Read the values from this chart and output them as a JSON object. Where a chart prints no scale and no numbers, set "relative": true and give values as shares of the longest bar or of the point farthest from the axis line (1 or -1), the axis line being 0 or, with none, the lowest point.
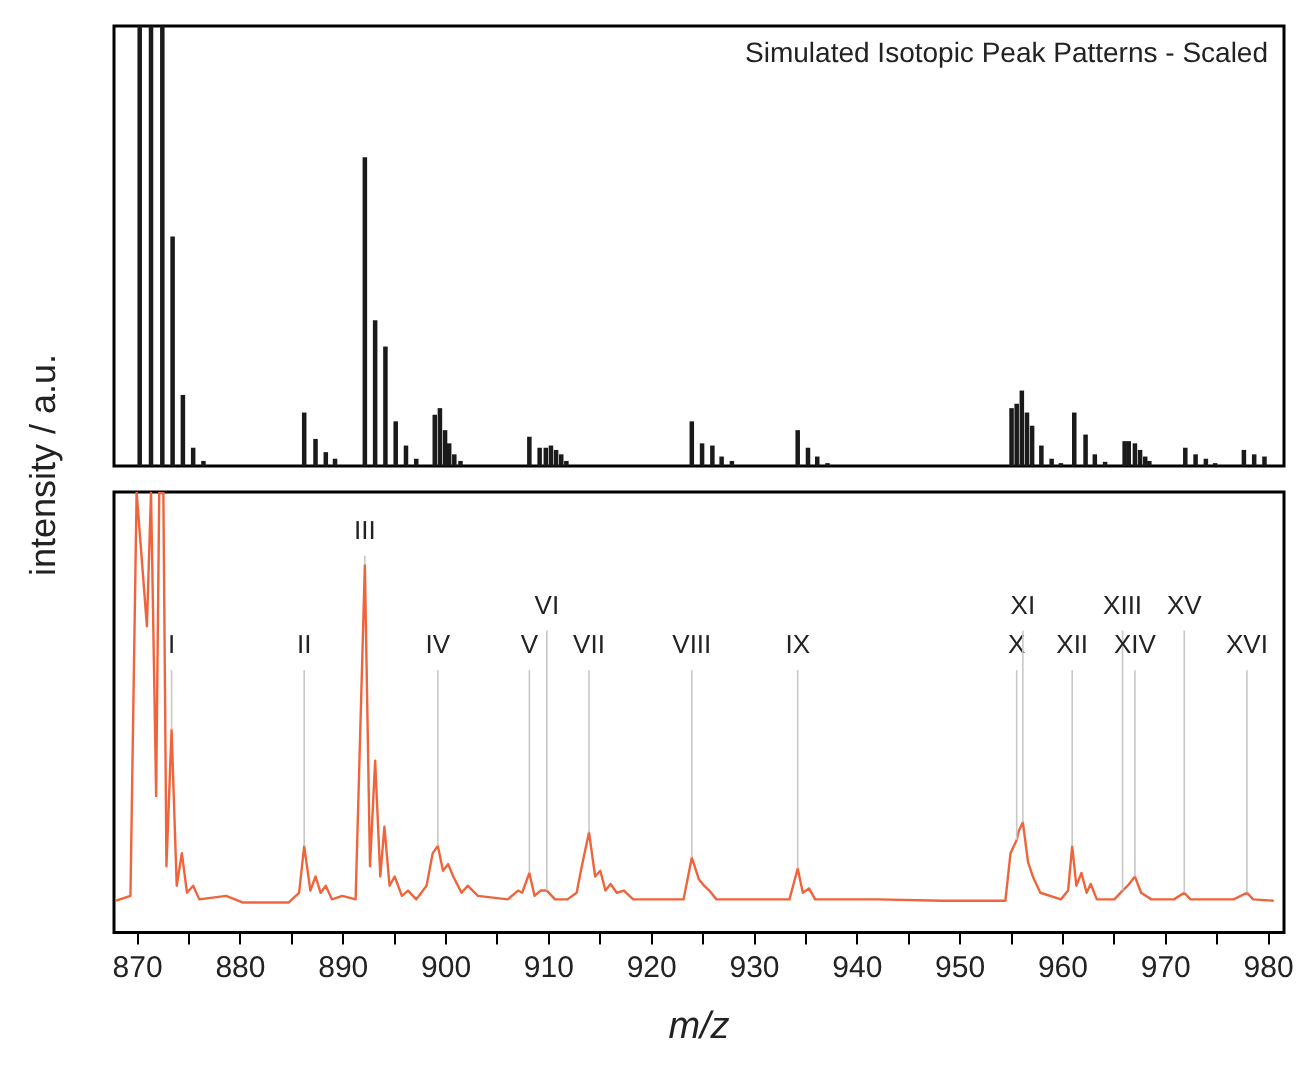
{
  "chart_data": [
    {
      "type": "bar",
      "title": "Simulated Isotopic Peak Patterns - Scaled",
      "relative": true,
      "color": "#1a1a1a",
      "xlim": [
        867.7,
        981.5
      ],
      "x": [
        870.2,
        871.3,
        872.4,
        873.4,
        874.4,
        875.4,
        876.4,
        886.2,
        887.3,
        888.3,
        889.2,
        892.1,
        893.1,
        894.1,
        895.1,
        896.1,
        897.1,
        898.9,
        899.4,
        899.9,
        900.3,
        900.8,
        901.4,
        908.1,
        909.1,
        909.7,
        910.2,
        910.7,
        911.2,
        911.7,
        923.9,
        924.9,
        925.9,
        926.8,
        927.8,
        934.2,
        935.2,
        936.1,
        937.1,
        955.0,
        955.5,
        956.0,
        956.5,
        957.0,
        957.9,
        958.9,
        959.8,
        961.1,
        962.2,
        963.1,
        964.1,
        966.0,
        966.4,
        967.0,
        967.5,
        968.0,
        968.4,
        971.9,
        972.9,
        973.9,
        974.8,
        977.6,
        978.6,
        979.6
      ],
      "values": [
        1,
        1,
        1,
        0.52,
        0.16,
        0.04,
        0.01,
        0.12,
        0.06,
        0.03,
        0.015,
        0.7,
        0.33,
        0.27,
        0.1,
        0.045,
        0.015,
        0.115,
        0.13,
        0.08,
        0.05,
        0.025,
        0.01,
        0.065,
        0.04,
        0.04,
        0.045,
        0.035,
        0.025,
        0.01,
        0.1,
        0.05,
        0.045,
        0.02,
        0.01,
        0.08,
        0.04,
        0.02,
        0.005,
        0.13,
        0.14,
        0.17,
        0.12,
        0.09,
        0.045,
        0.015,
        0.005,
        0.12,
        0.07,
        0.025,
        0.008,
        0.055,
        0.055,
        0.05,
        0.035,
        0.02,
        0.01,
        0.04,
        0.025,
        0.015,
        0.005,
        0.035,
        0.025,
        0.02
      ]
    },
    {
      "type": "line",
      "xlabel": "m/z",
      "ylabel": "intensity / a.u.",
      "relative": true,
      "color": "#f0643c",
      "marker": "none",
      "xlim": [
        867.7,
        981.5
      ],
      "xticks": [
        870,
        {
          "value": 875,
          "label": null
        },
        880,
        {
          "value": 885,
          "label": null
        },
        890,
        {
          "value": 895,
          "label": null
        },
        900,
        {
          "value": 905,
          "label": null
        },
        910,
        {
          "value": 915,
          "label": null
        },
        920,
        {
          "value": 925,
          "label": null
        },
        930,
        {
          "value": 935,
          "label": null
        },
        940,
        {
          "value": 945,
          "label": null
        },
        950,
        {
          "value": 955,
          "label": null
        },
        960,
        {
          "value": 965,
          "label": null
        },
        970,
        {
          "value": 975,
          "label": null
        },
        980
      ],
      "x": [
        867.9,
        869.3,
        869.9,
        870.9,
        871.3,
        871.8,
        872.1,
        872.5,
        872.8,
        873.3,
        873.8,
        874.3,
        874.8,
        875.4,
        876.0,
        878.6,
        880.2,
        884.7,
        885.7,
        886.2,
        886.8,
        887.3,
        887.8,
        888.3,
        888.9,
        889.9,
        891.2,
        892.1,
        892.6,
        893.1,
        893.6,
        894.0,
        894.5,
        895.0,
        895.7,
        896.3,
        897.1,
        898.1,
        898.7,
        899.2,
        899.7,
        900.2,
        900.7,
        901.5,
        902.1,
        903.1,
        906.0,
        907.0,
        907.4,
        908.1,
        908.6,
        909.2,
        909.8,
        910.6,
        911.8,
        912.7,
        913.2,
        913.9,
        914.5,
        915.0,
        915.5,
        916.0,
        916.6,
        917.3,
        918.2,
        920.8,
        923.1,
        923.9,
        924.6,
        925.1,
        925.6,
        926.3,
        928.9,
        933.4,
        934.2,
        934.7,
        935.3,
        935.9,
        941.9,
        948.3,
        954.4,
        954.9,
        955.5,
        955.7,
        956.1,
        956.6,
        957.1,
        957.8,
        959.8,
        960.5,
        960.9,
        961.3,
        961.8,
        962.3,
        962.7,
        963.3,
        965.0,
        965.8,
        966.3,
        967.0,
        967.6,
        968.6,
        970.8,
        971.8,
        972.4,
        974.0,
        976.6,
        977.9,
        978.5,
        980.5
      ],
      "values": [
        0.072,
        0.083,
        1,
        0.695,
        1,
        0.31,
        1,
        1,
        0.15,
        0.46,
        0.106,
        0.18,
        0.09,
        0.106,
        0.075,
        0.083,
        0.068,
        0.068,
        0.09,
        0.196,
        0.095,
        0.127,
        0.09,
        0.106,
        0.075,
        0.083,
        0.075,
        0.835,
        0.15,
        0.39,
        0.127,
        0.24,
        0.106,
        0.127,
        0.083,
        0.095,
        0.075,
        0.106,
        0.18,
        0.196,
        0.14,
        0.155,
        0.127,
        0.09,
        0.106,
        0.083,
        0.075,
        0.095,
        0.09,
        0.135,
        0.083,
        0.095,
        0.095,
        0.075,
        0.075,
        0.09,
        0.15,
        0.227,
        0.127,
        0.14,
        0.095,
        0.11,
        0.09,
        0.095,
        0.075,
        0.075,
        0.075,
        0.17,
        0.12,
        0.106,
        0.095,
        0.075,
        0.075,
        0.075,
        0.145,
        0.09,
        0.1,
        0.075,
        0.075,
        0.072,
        0.072,
        0.18,
        0.21,
        0.23,
        0.25,
        0.16,
        0.125,
        0.09,
        0.075,
        0.095,
        0.196,
        0.106,
        0.135,
        0.09,
        0.11,
        0.075,
        0.075,
        0.095,
        0.106,
        0.127,
        0.09,
        0.075,
        0.075,
        0.09,
        0.075,
        0.075,
        0.075,
        0.09,
        0.075,
        0.072
      ],
      "annotations": [
        {
          "text": "I",
          "x": 873.3,
          "y": 0.46
        },
        {
          "text": "II",
          "x": 886.2,
          "y": 0.196
        },
        {
          "text": "III",
          "x": 892.1,
          "y": 0.835
        },
        {
          "text": "IV",
          "x": 899.2,
          "y": 0.196
        },
        {
          "text": "V",
          "x": 908.1,
          "y": 0.135
        },
        {
          "text": "VI",
          "x": 909.8,
          "y": 0.095
        },
        {
          "text": "VII",
          "x": 913.9,
          "y": 0.227
        },
        {
          "text": "VIII",
          "x": 923.9,
          "y": 0.17
        },
        {
          "text": "IX",
          "x": 934.2,
          "y": 0.145
        },
        {
          "text": "X",
          "x": 955.5,
          "y": 0.21
        },
        {
          "text": "XI",
          "x": 956.1,
          "y": 0.25
        },
        {
          "text": "XII",
          "x": 960.9,
          "y": 0.196
        },
        {
          "text": "XIII",
          "x": 965.8,
          "y": 0.095
        },
        {
          "text": "XIV",
          "x": 967.0,
          "y": 0.127
        },
        {
          "text": "XV",
          "x": 971.8,
          "y": 0.09
        },
        {
          "text": "XVI",
          "x": 977.9,
          "y": 0.09
        }
      ]
    }
  ]
}
